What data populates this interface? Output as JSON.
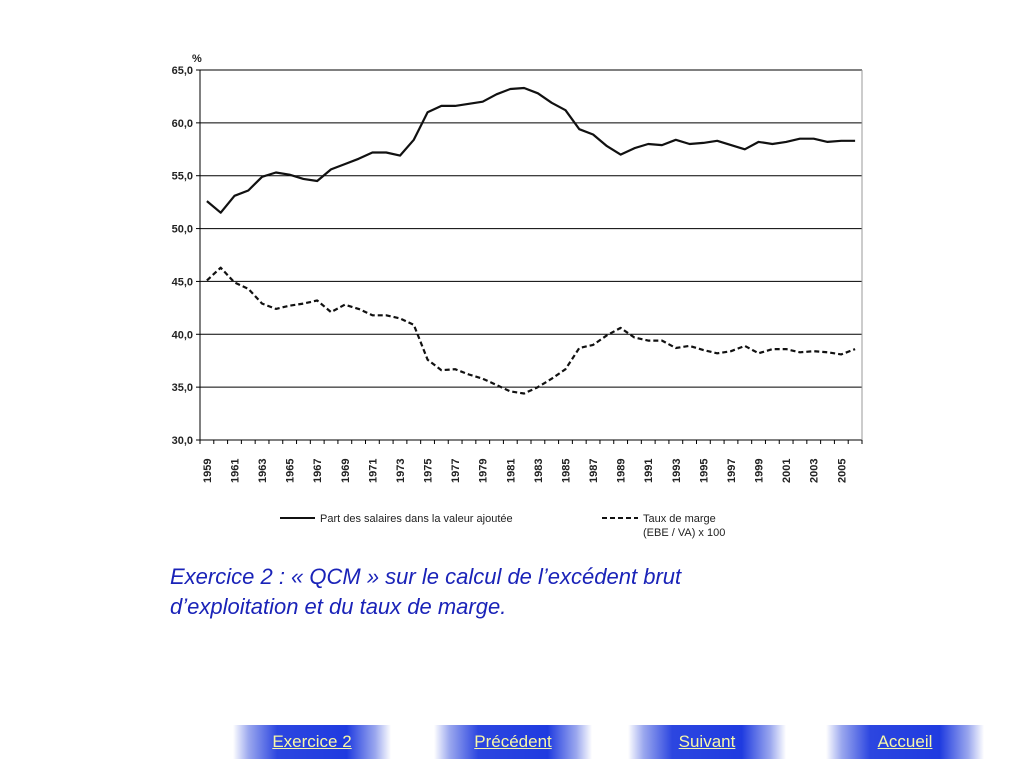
{
  "chart_data": {
    "type": "line",
    "unit_label": "%",
    "ylim": [
      30.0,
      65.0
    ],
    "yticks": [
      "30,0",
      "35,0",
      "40,0",
      "45,0",
      "50,0",
      "55,0",
      "60,0",
      "65,0"
    ],
    "xlim": [
      1959,
      2006
    ],
    "xticks": [
      "1959",
      "1961",
      "1963",
      "1965",
      "1967",
      "1969",
      "1971",
      "1973",
      "1975",
      "1977",
      "1979",
      "1981",
      "1983",
      "1985",
      "1987",
      "1989",
      "1991",
      "1993",
      "1995",
      "1997",
      "1999",
      "2001",
      "2003",
      "2005"
    ],
    "grid": "horizontal",
    "legend_position": "bottom",
    "x": [
      1959,
      1960,
      1961,
      1962,
      1963,
      1964,
      1965,
      1966,
      1967,
      1968,
      1969,
      1970,
      1971,
      1972,
      1973,
      1974,
      1975,
      1976,
      1977,
      1978,
      1979,
      1980,
      1981,
      1982,
      1983,
      1984,
      1985,
      1986,
      1987,
      1988,
      1989,
      1990,
      1991,
      1992,
      1993,
      1994,
      1995,
      1996,
      1997,
      1998,
      1999,
      2000,
      2001,
      2002,
      2003,
      2004,
      2005,
      2006
    ],
    "series": [
      {
        "name": "Part des salaires  dans la valeur ajoutée",
        "style": "solid",
        "color": "#111111",
        "values": [
          52.6,
          51.5,
          53.1,
          53.6,
          54.9,
          55.3,
          55.1,
          54.7,
          54.5,
          55.6,
          56.1,
          56.6,
          57.2,
          57.2,
          56.9,
          58.4,
          61.0,
          61.6,
          61.6,
          61.8,
          62.0,
          62.7,
          63.2,
          63.3,
          62.8,
          61.9,
          61.2,
          59.4,
          58.9,
          57.8,
          57.0,
          57.6,
          58.0,
          57.9,
          58.4,
          58.0,
          58.1,
          58.3,
          57.9,
          57.5,
          58.2,
          58.0,
          58.2,
          58.5,
          58.5,
          58.2,
          58.3,
          58.3
        ]
      },
      {
        "name": "Taux de marge\n(EBE / VA) x 100",
        "name_lines": [
          "Taux de marge",
          "(EBE / VA) x 100"
        ],
        "style": "dashed",
        "color": "#111111",
        "values": [
          45.1,
          46.3,
          44.9,
          44.3,
          42.9,
          42.4,
          42.7,
          42.9,
          43.2,
          42.1,
          42.8,
          42.4,
          41.8,
          41.8,
          41.5,
          40.9,
          37.6,
          36.6,
          36.7,
          36.2,
          35.8,
          35.2,
          34.6,
          34.4,
          35.0,
          35.8,
          36.7,
          38.7,
          39.0,
          39.9,
          40.6,
          39.7,
          39.4,
          39.4,
          38.7,
          38.9,
          38.5,
          38.2,
          38.4,
          38.9,
          38.2,
          38.6,
          38.6,
          38.3,
          38.4,
          38.3,
          38.1,
          38.6
        ]
      }
    ]
  },
  "exercise": {
    "line1": "Exercice 2 :  « QCM » sur le calcul de l’excédent brut",
    "line2": "d’exploitation et du taux de marge."
  },
  "nav": {
    "exercice_label": "Exercice 2",
    "precedent_label": "Précédent",
    "suivant_label": "Suivant",
    "accueil_label": "Accueil"
  }
}
